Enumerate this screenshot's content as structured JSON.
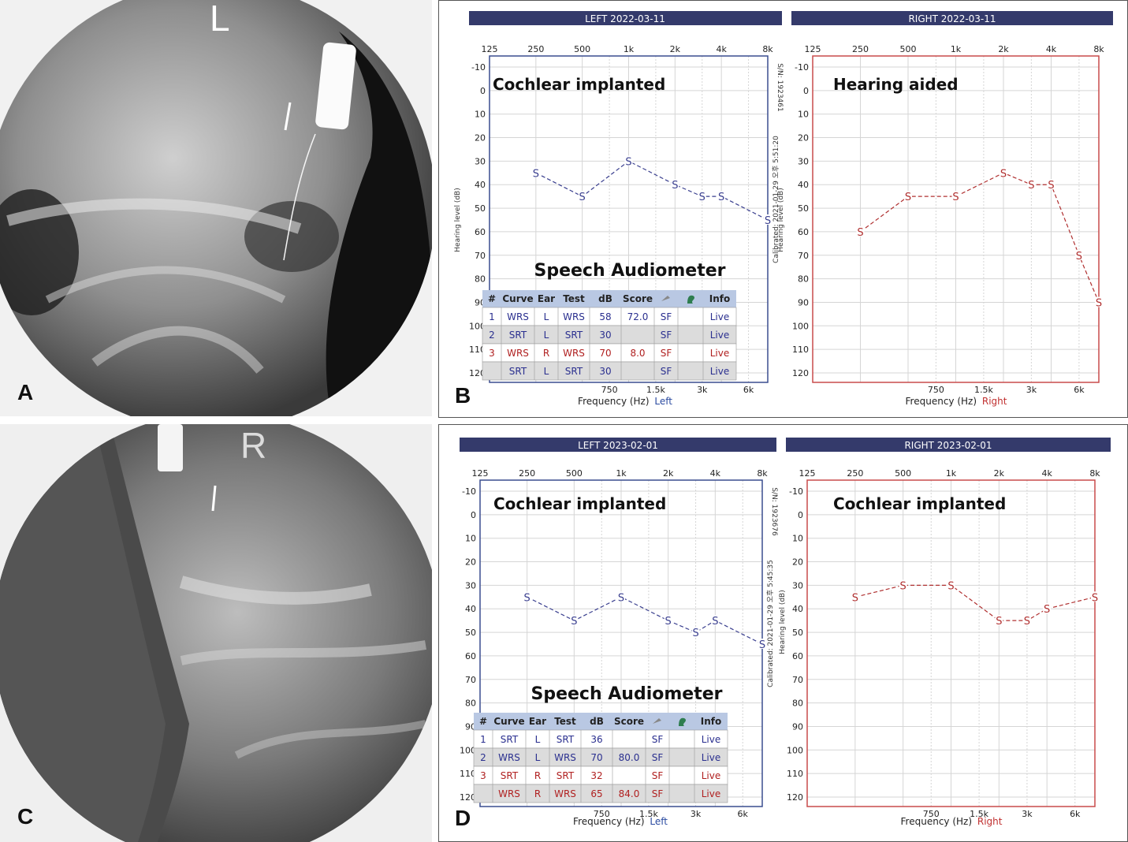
{
  "panels": {
    "A": {
      "letter": "A",
      "side_marker": "L"
    },
    "B": {
      "letter": "B",
      "left": {
        "header": "LEFT  2022-03-11",
        "annotation": "Cochlear implanted",
        "ylabel": "Hearing level (dB)",
        "serial": "S/N: 1923461",
        "calibrated": "Calibrated: 2021-01-29 오후 5:51:20",
        "xlabel": "Frequency (Hz)",
        "xlabel_side": "Left",
        "table_title": "Speech Audiometer"
      },
      "right": {
        "header": "RIGHT  2022-03-11",
        "annotation": "Hearing aided",
        "ylabel": "Hearing level (dB)",
        "xlabel": "Frequency (Hz)",
        "xlabel_side": "Right"
      }
    },
    "C": {
      "letter": "C",
      "side_marker": "R"
    },
    "D": {
      "letter": "D",
      "left": {
        "header": "LEFT  2023-02-01",
        "annotation": "Cochlear implanted",
        "ylabel": "Hearing level (dB)",
        "serial": "S/N: 1923676",
        "calibrated": "Calibrated: 2021-01-29 오후 5:45:35",
        "xlabel": "Frequency (Hz)",
        "xlabel_side": "Left",
        "table_title": "Speech Audiometer"
      },
      "right": {
        "header": "RIGHT  2023-02-01",
        "annotation": "Cochlear implanted",
        "ylabel": "Hearing level (dB)",
        "xlabel": "Frequency (Hz)",
        "xlabel_side": "Right"
      }
    }
  },
  "audiogram_axis": {
    "top_ticks": [
      "125",
      "250",
      "500",
      "1k",
      "2k",
      "4k",
      "8k"
    ],
    "bottom_ticks": [
      "750",
      "1.5k",
      "3k",
      "6k"
    ],
    "y_ticks": [
      "-10",
      "0",
      "10",
      "20",
      "30",
      "40",
      "50",
      "60",
      "70",
      "80",
      "90",
      "100",
      "110",
      "120"
    ],
    "ylim": [
      -10,
      120
    ]
  },
  "speech_table": {
    "headers": [
      "#",
      "Curve",
      "Ear",
      "Test",
      "dB",
      "Score",
      "",
      "",
      "Info"
    ],
    "icon_headers": [
      "mic-icon",
      "ear-icon"
    ]
  },
  "chart_data": [
    {
      "type": "line",
      "panel": "B-left",
      "x": [
        "250",
        "500",
        "1k",
        "2k",
        "3k",
        "4k",
        "8k"
      ],
      "series": [
        {
          "marker": "S",
          "color": "#3a3f8f",
          "values": [
            35,
            45,
            30,
            40,
            45,
            45,
            55
          ]
        }
      ],
      "ylim": [
        -10,
        120
      ]
    },
    {
      "type": "line",
      "panel": "B-right",
      "x": [
        "250",
        "500",
        "1k",
        "2k",
        "3k",
        "4k",
        "6k",
        "8k"
      ],
      "series": [
        {
          "marker": "S",
          "color": "#b03030",
          "values": [
            60,
            45,
            45,
            35,
            40,
            40,
            70,
            90
          ]
        }
      ],
      "ylim": [
        -10,
        120
      ]
    },
    {
      "type": "line",
      "panel": "D-left",
      "x": [
        "250",
        "500",
        "1k",
        "2k",
        "3k",
        "4k",
        "8k"
      ],
      "series": [
        {
          "marker": "S",
          "color": "#3a3f8f",
          "values": [
            35,
            45,
            35,
            45,
            50,
            45,
            55
          ]
        }
      ],
      "ylim": [
        -10,
        120
      ]
    },
    {
      "type": "line",
      "panel": "D-right",
      "x": [
        "250",
        "500",
        "1k",
        "2k",
        "3k",
        "4k",
        "8k"
      ],
      "series": [
        {
          "marker": "S",
          "color": "#b03030",
          "values": [
            35,
            30,
            30,
            45,
            45,
            40,
            35
          ]
        }
      ],
      "ylim": [
        -10,
        120
      ]
    },
    {
      "type": "table",
      "panel": "B-speech",
      "columns": [
        "#",
        "Curve",
        "Ear",
        "Test",
        "dB",
        "Score",
        "",
        "",
        "Info"
      ],
      "rows": [
        [
          "1",
          "WRS",
          "L",
          "WRS",
          "58",
          "72.0",
          "SF",
          "",
          "Live"
        ],
        [
          "2",
          "SRT",
          "L",
          "SRT",
          "30",
          "",
          "SF",
          "",
          "Live"
        ],
        [
          "3",
          "WRS",
          "R",
          "WRS",
          "70",
          "8.0",
          "SF",
          "",
          "Live"
        ],
        [
          "",
          "SRT",
          "L",
          "SRT",
          "30",
          "",
          "SF",
          "",
          "Live"
        ]
      ],
      "row_colors": [
        "#2a2f8f",
        "#2a2f8f",
        "#b02020",
        "#2a2f8f"
      ]
    },
    {
      "type": "table",
      "panel": "D-speech",
      "columns": [
        "#",
        "Curve",
        "Ear",
        "Test",
        "dB",
        "Score",
        "",
        "",
        "Info"
      ],
      "rows": [
        [
          "1",
          "SRT",
          "L",
          "SRT",
          "36",
          "",
          "SF",
          "",
          "Live"
        ],
        [
          "2",
          "WRS",
          "L",
          "WRS",
          "70",
          "80.0",
          "SF",
          "",
          "Live"
        ],
        [
          "3",
          "SRT",
          "R",
          "SRT",
          "32",
          "",
          "SF",
          "",
          "Live"
        ],
        [
          "",
          "WRS",
          "R",
          "WRS",
          "65",
          "84.0",
          "SF",
          "",
          "Live"
        ]
      ],
      "row_colors": [
        "#2a2f8f",
        "#2a2f8f",
        "#b02020",
        "#b02020"
      ]
    }
  ]
}
